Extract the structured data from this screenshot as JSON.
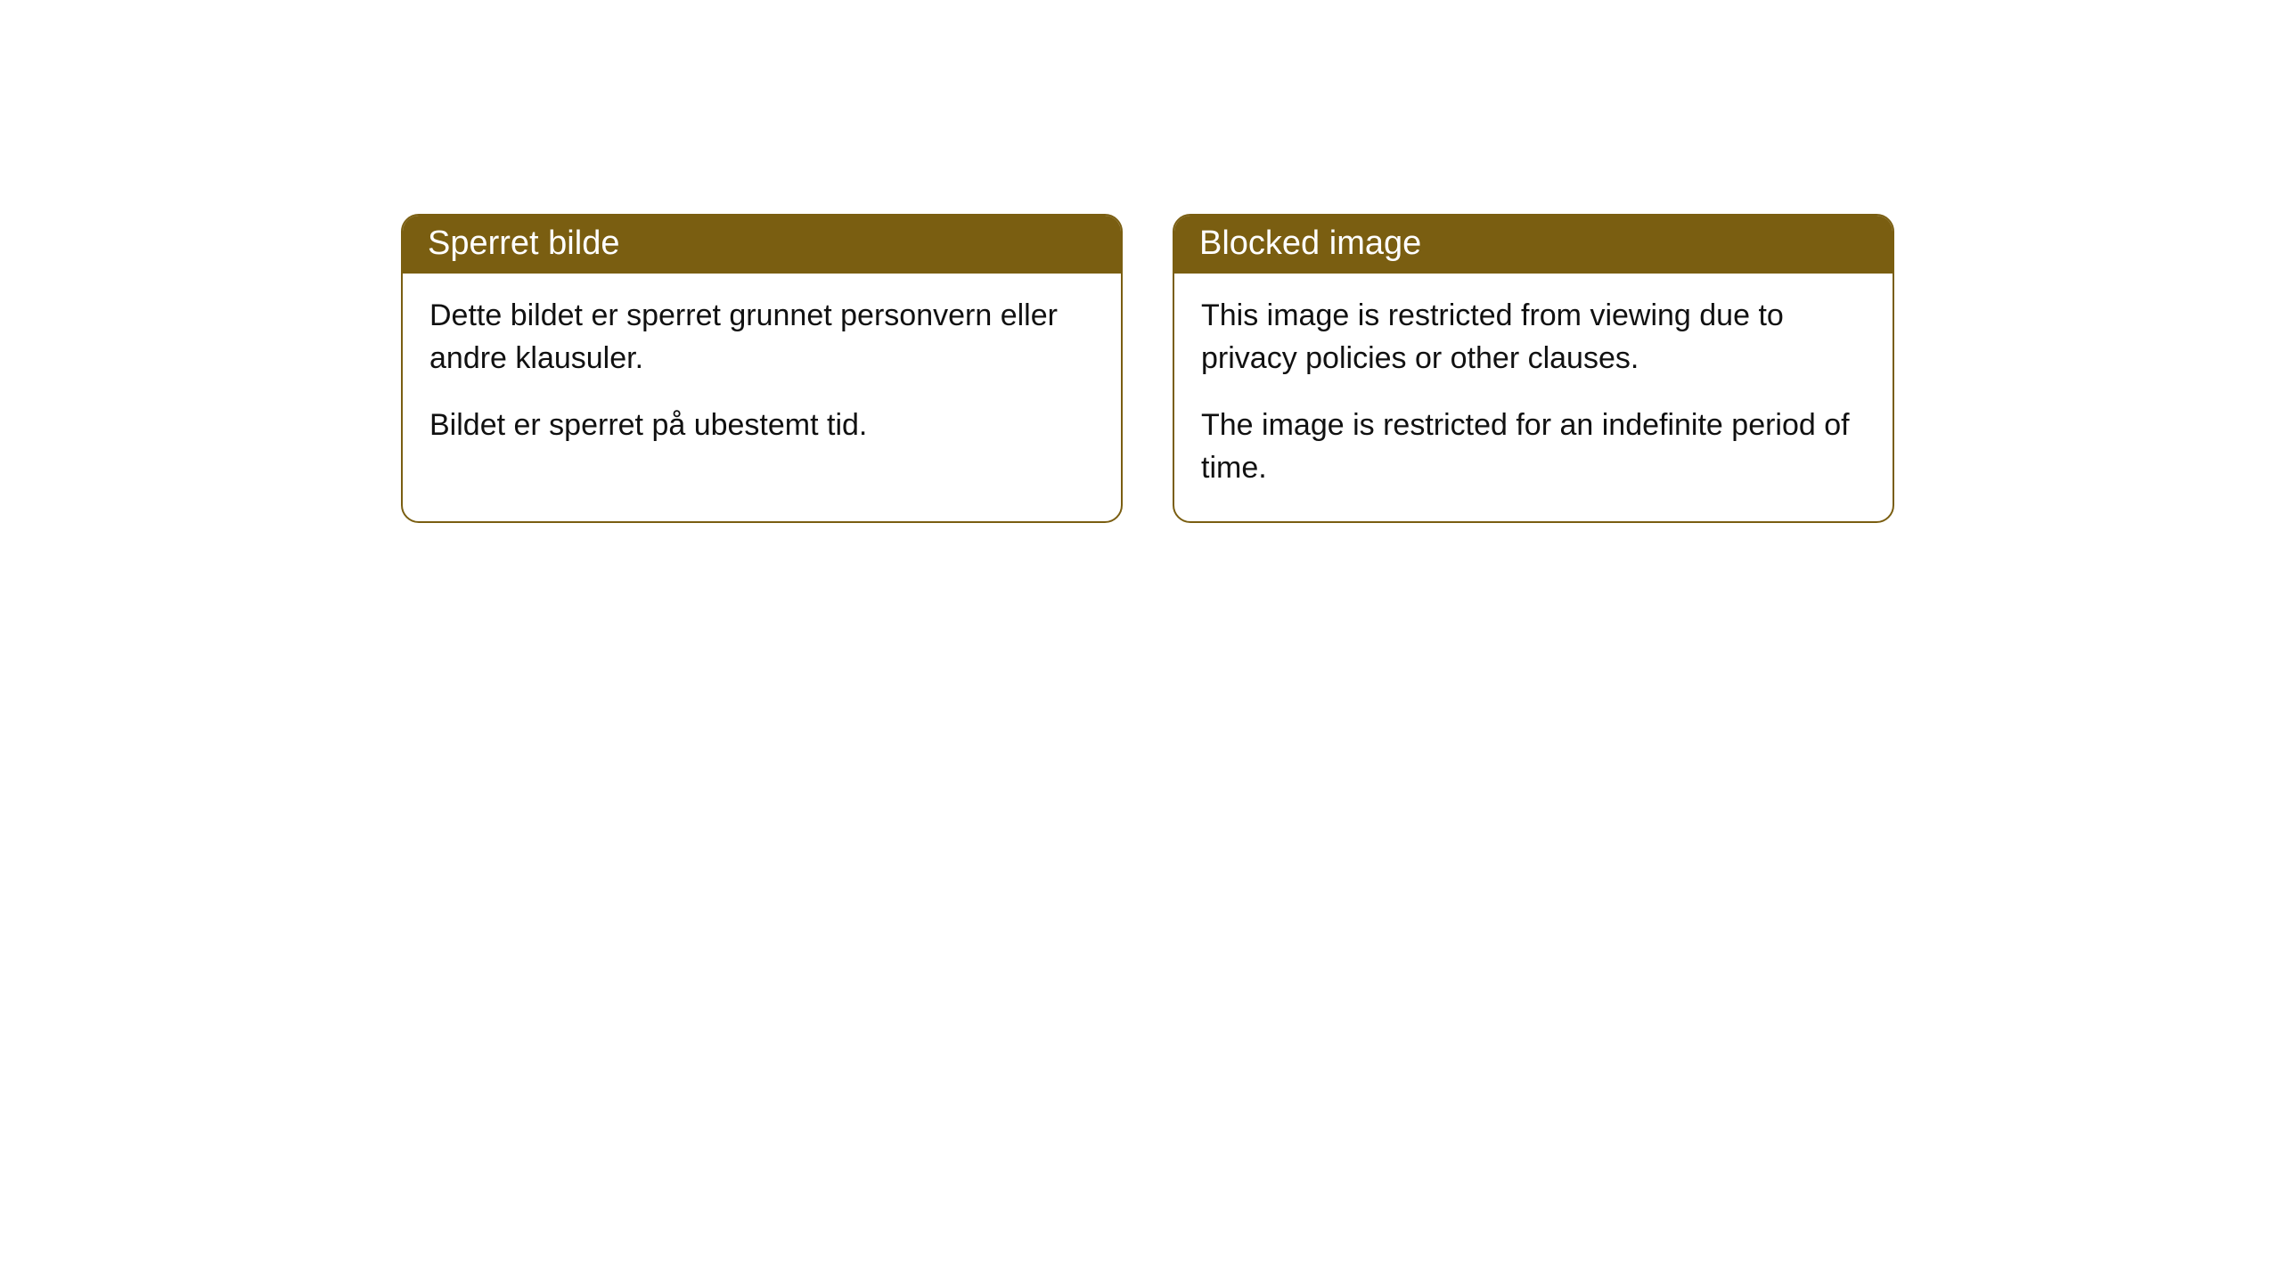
{
  "colors": {
    "header_bg": "#7a5e11",
    "header_text": "#ffffff",
    "border": "#7a5e11",
    "body_bg": "#ffffff",
    "body_text": "#111111"
  },
  "cards": {
    "left": {
      "title": "Sperret bilde",
      "para1": "Dette bildet er sperret grunnet personvern eller andre klausuler.",
      "para2": "Bildet er sperret på ubestemt tid."
    },
    "right": {
      "title": "Blocked image",
      "para1": "This image is restricted from viewing due to privacy policies or other clauses.",
      "para2": "The image is restricted for an indefinite period of time."
    }
  }
}
